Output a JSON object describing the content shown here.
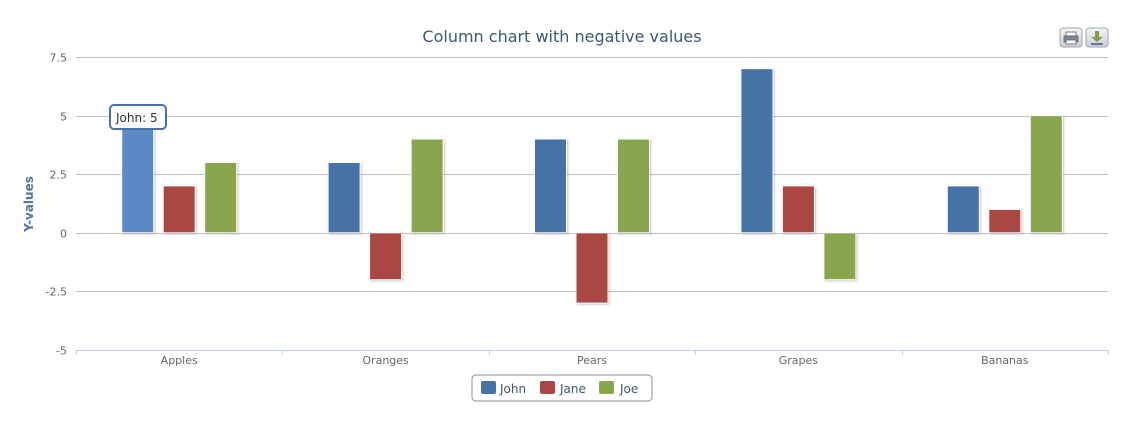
{
  "toolbar": {
    "print_icon": "printer-icon",
    "export_icon": "download-icon"
  },
  "tooltip": {
    "text": "John: 5",
    "series_index": 0,
    "category_index": 0
  },
  "colors": {
    "grid": "#c0c0c0",
    "axis": "#c0d0e0",
    "title": "#3e576f",
    "axis_title": "#4d759e",
    "tooltip_border": "#4572a7"
  },
  "chart_data": {
    "type": "bar",
    "title": "Column chart with negative values",
    "xlabel": "",
    "ylabel": "Y-values",
    "categories": [
      "Apples",
      "Oranges",
      "Pears",
      "Grapes",
      "Bananas"
    ],
    "ylim": [
      -5,
      7.5
    ],
    "yticks": [
      "7.5",
      "5",
      "2.5",
      "0",
      "-2.5",
      "-5"
    ],
    "ytick_values": [
      7.5,
      5,
      2.5,
      0,
      -2.5,
      -5
    ],
    "grid": true,
    "legend_position": "bottom-center",
    "series": [
      {
        "name": "John",
        "color": "#4572a7",
        "values": [
          5,
          3,
          4,
          7,
          2
        ]
      },
      {
        "name": "Jane",
        "color": "#aa4643",
        "values": [
          2,
          -2,
          -3,
          2,
          1
        ]
      },
      {
        "name": "Joe",
        "color": "#89a54e",
        "values": [
          3,
          4,
          4,
          -2,
          5
        ]
      }
    ]
  }
}
